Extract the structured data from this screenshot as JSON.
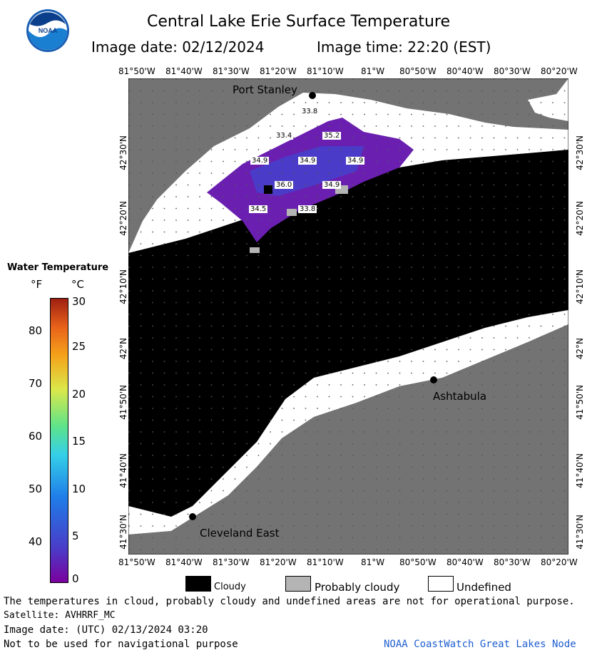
{
  "header": {
    "title": "Central Lake Erie Surface Temperature",
    "image_date": "Image date: 02/12/2024",
    "image_time": "Image time: 22:20 (EST)"
  },
  "axes": {
    "lon_labels": [
      "81°50'W",
      "81°40'W",
      "81°30'W",
      "81°20'W",
      "81°10'W",
      "81°W",
      "80°50'W",
      "80°40'W",
      "80°30'W",
      "80°20'W"
    ],
    "lat_labels": [
      "42°30'N",
      "42°20'N",
      "42°10'N",
      "42°N",
      "41°50'N",
      "41°40'N",
      "41°30'N"
    ]
  },
  "places": {
    "port_stanley": "Port Stanley",
    "ashtabula": "Ashtabula",
    "cleveland_east": "Cleveland East"
  },
  "temps": [
    "33.8",
    "33.4",
    "35.2",
    "34.9",
    "34.9",
    "34.9",
    "36.0",
    "34.9",
    "34.5",
    "33.8"
  ],
  "legend": {
    "title": "Water Temperature",
    "unit_f": "°F",
    "unit_c": "°C",
    "f_ticks": [
      "80",
      "70",
      "60",
      "50",
      "40"
    ],
    "c_ticks": [
      "30",
      "25",
      "20",
      "15",
      "10",
      "5",
      "0"
    ]
  },
  "key": {
    "cloudy": "Cloudy",
    "probably_cloudy": "Probably cloudy",
    "undefined": "Undefined"
  },
  "footer": {
    "note": "The temperatures in cloud, probably cloudy and undefined areas are not for operational purpose.",
    "satellite": "Satellite: AVHRRF_MC",
    "utc_date": "Image date: (UTC) 02/13/2024  03:20",
    "nav": "Not to be used for navigational purpose",
    "credit": "NOAA CoastWatch Great Lakes Node"
  },
  "colors": {
    "land": "#737373",
    "cloud": "#000000",
    "probably_cloudy": "#b4b4b4",
    "undefined": "#ffffff",
    "water_cold": "#6a1fb0"
  }
}
